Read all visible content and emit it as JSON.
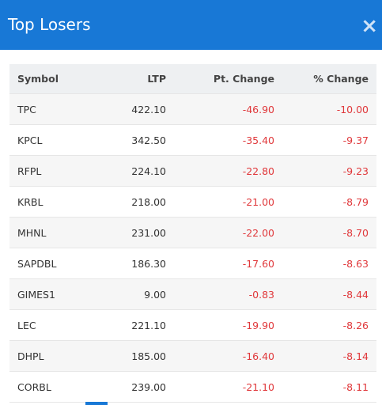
{
  "header": {
    "title": "Top Losers",
    "close": "×"
  },
  "table": {
    "columns": [
      "Symbol",
      "LTP",
      "Pt. Change",
      "% Change"
    ],
    "rows": [
      [
        "TPC",
        "422.10",
        "-46.90",
        "-10.00"
      ],
      [
        "KPCL",
        "342.50",
        "-35.40",
        "-9.37"
      ],
      [
        "RFPL",
        "224.10",
        "-22.80",
        "-9.23"
      ],
      [
        "KRBL",
        "218.00",
        "-21.00",
        "-8.79"
      ],
      [
        "MHNL",
        "231.00",
        "-22.00",
        "-8.70"
      ],
      [
        "SAPDBL",
        "186.30",
        "-17.60",
        "-8.63"
      ],
      [
        "GIMES1",
        "9.00",
        "-0.83",
        "-8.44"
      ],
      [
        "LEC",
        "221.10",
        "-19.90",
        "-8.26"
      ],
      [
        "DHPL",
        "185.00",
        "-16.40",
        "-8.14"
      ],
      [
        "CORBL",
        "239.00",
        "-21.10",
        "-8.11"
      ]
    ]
  }
}
